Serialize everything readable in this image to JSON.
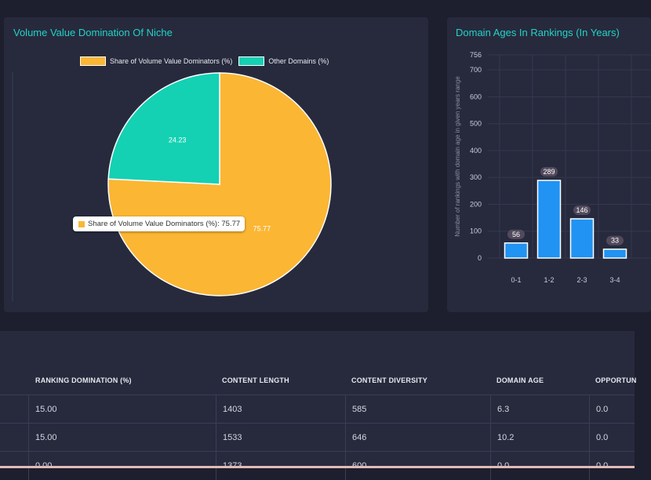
{
  "pie_card": {
    "title": "Volume Value Domination Of Niche",
    "legend": [
      {
        "label": "Share of Volume Value Dominators (%)",
        "color": "#fbb634"
      },
      {
        "label": "Other Domains (%)",
        "color": "#14d1b3"
      }
    ],
    "tooltip": "Share of Volume Value Dominators (%): 75.77",
    "slice_labels": [
      "75.77",
      "24.23"
    ]
  },
  "bar_card": {
    "title": "Domain Ages In Rankings (In Years)",
    "y_axis_label": "Number of rankings with domain age in given years range",
    "y_ticks": [
      "0",
      "100",
      "200",
      "300",
      "400",
      "500",
      "600",
      "700",
      "756"
    ]
  },
  "table": {
    "headers": [
      "RANKING DOMINATION (%)",
      "CONTENT LENGTH",
      "CONTENT DIVERSITY",
      "DOMAIN AGE",
      "OPPORTUN"
    ],
    "rows": [
      [
        "15.00",
        "1403",
        "585",
        "6.3",
        "0.0"
      ],
      [
        "15.00",
        "1533",
        "646",
        "10.2",
        "0.0"
      ],
      [
        "0.00",
        "1373",
        "600",
        "0.0",
        "0.0"
      ]
    ]
  },
  "chart_data": [
    {
      "type": "pie",
      "title": "Volume Value Domination Of Niche",
      "categories": [
        "Share of Volume Value Dominators (%)",
        "Other Domains (%)"
      ],
      "values": [
        75.77,
        24.23
      ],
      "colors": [
        "#fbb634",
        "#14d1b3"
      ],
      "legend": "top"
    },
    {
      "type": "bar",
      "title": "Domain Ages In Rankings (In Years)",
      "categories": [
        "0-1",
        "1-2",
        "2-3",
        "3-4"
      ],
      "values": [
        56,
        289,
        146,
        33
      ],
      "ylabel": "Number of rankings with domain age in given years range",
      "ylim": [
        0,
        756
      ],
      "color": "#2193f3",
      "grid": true
    }
  ]
}
